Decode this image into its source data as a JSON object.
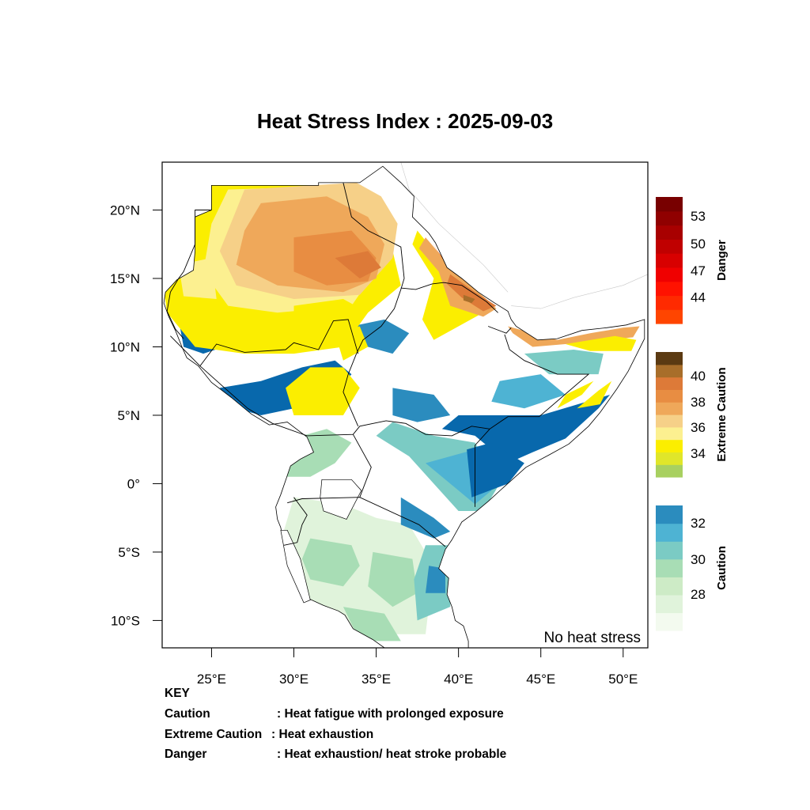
{
  "title": "Heat Stress Index : 2025-09-03",
  "map": {
    "lon_range": [
      22,
      51.5
    ],
    "lat_range": [
      -12,
      23.5
    ],
    "x_ticks": [
      {
        "lon": 25,
        "label": "25°E"
      },
      {
        "lon": 30,
        "label": "30°E"
      },
      {
        "lon": 35,
        "label": "35°E"
      },
      {
        "lon": 40,
        "label": "40°E"
      },
      {
        "lon": 45,
        "label": "45°E"
      },
      {
        "lon": 50,
        "label": "50°E"
      }
    ],
    "y_ticks": [
      {
        "lat": 20,
        "label": "20°N"
      },
      {
        "lat": 15,
        "label": "15°N"
      },
      {
        "lat": 10,
        "label": "10°N"
      },
      {
        "lat": 5,
        "label": "5°N"
      },
      {
        "lat": 0,
        "label": "0°"
      },
      {
        "lat": -5,
        "label": "5°S"
      },
      {
        "lat": -10,
        "label": "10°S"
      }
    ],
    "corner_label": "No heat stress",
    "ocean_color": "#ffffff",
    "border_color": "#000000"
  },
  "legend": [
    {
      "name": "Danger",
      "colors": [
        "#ff4500",
        "#ff2a00",
        "#ff1200",
        "#f00000",
        "#d80000",
        "#c00000",
        "#a80000",
        "#900000",
        "#780000"
      ],
      "ticks": [
        {
          "value": 44,
          "label": "44",
          "frac": 0.21
        },
        {
          "value": 47,
          "label": "47",
          "frac": 0.42
        },
        {
          "value": 50,
          "label": "50",
          "frac": 0.63
        },
        {
          "value": 53,
          "label": "53",
          "frac": 0.85
        }
      ]
    },
    {
      "name": "Extreme Caution",
      "colors": [
        "#a8d060",
        "#e0e62a",
        "#fbee00",
        "#fcf090",
        "#f6d088",
        "#efa85a",
        "#e88d42",
        "#dd7a38",
        "#a86e2a",
        "#5b3a12"
      ],
      "ticks": [
        {
          "value": 34,
          "label": "34",
          "frac": 0.19
        },
        {
          "value": 36,
          "label": "36",
          "frac": 0.4
        },
        {
          "value": 38,
          "label": "38",
          "frac": 0.6
        },
        {
          "value": 40,
          "label": "40",
          "frac": 0.81
        }
      ]
    },
    {
      "name": "Caution",
      "colors": [
        "#f3faef",
        "#e0f3db",
        "#cdebc6",
        "#a8ddb5",
        "#7bcbc4",
        "#4eb3d3",
        "#2b8cbe"
      ],
      "ticks": [
        {
          "value": 28,
          "label": "28",
          "frac": 0.29
        },
        {
          "value": 30,
          "label": "30",
          "frac": 0.57
        },
        {
          "value": 32,
          "label": "32",
          "frac": 0.86
        }
      ]
    }
  ],
  "key": {
    "heading": "KEY",
    "rows": [
      {
        "term": "Caution",
        "desc": ": Heat fatigue with prolonged exposure"
      },
      {
        "term": "Extreme Caution",
        "desc": " : Heat exhaustion"
      },
      {
        "term": "Danger",
        "desc": ": Heat exhaustion/ heat stroke probable"
      }
    ]
  },
  "field_colors": {
    "white": "#ffffff",
    "pale_green": "#e0f3db",
    "light_green": "#a8ddb5",
    "teal": "#7bcbc4",
    "light_blue": "#4eb3d3",
    "blue": "#2b8cbe",
    "dark_blue": "#0868ac",
    "yellow": "#fbee00",
    "pale_yellow": "#fcf090",
    "tan": "#f6d088",
    "light_orange": "#efa85a",
    "orange": "#e88d42",
    "dark_orange": "#dd7a38",
    "brown": "#a86e2a",
    "red_orange": "#ff4500",
    "red": "#e00000"
  }
}
